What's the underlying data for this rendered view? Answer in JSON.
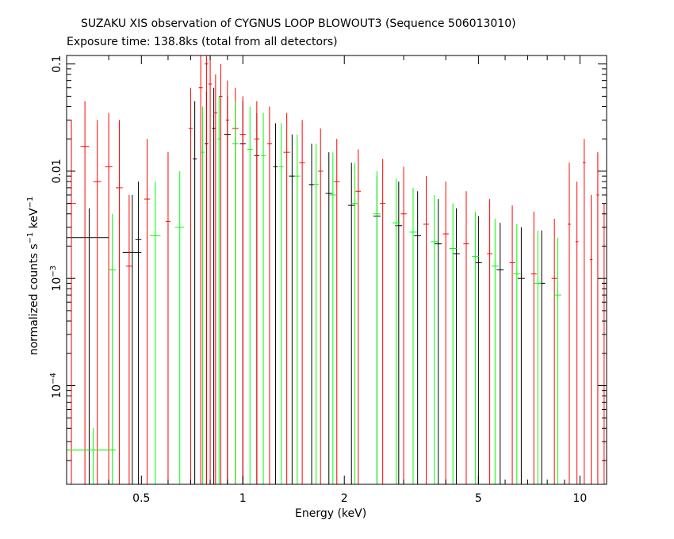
{
  "chart_data": {
    "type": "scatter",
    "title": "SUZAKU XIS observation of CYGNUS LOOP BLOWOUT3 (Sequence 506013010)",
    "subtitle": "Exposure time: 138.8ks (total from all detectors)",
    "xlabel": "Energy (keV)",
    "ylabel": "normalized counts s^-1 keV^-1",
    "xscale": "log",
    "yscale": "log",
    "xlim": [
      0.3,
      12
    ],
    "ylim": [
      1.2e-05,
      0.12
    ],
    "xticks": [
      {
        "value": 0.5,
        "label": "0.5"
      },
      {
        "value": 1,
        "label": "1"
      },
      {
        "value": 2,
        "label": "2"
      },
      {
        "value": 5,
        "label": "5"
      },
      {
        "value": 10,
        "label": "10"
      }
    ],
    "yticks": [
      {
        "value": 0.1,
        "label": "0.1"
      },
      {
        "value": 0.01,
        "label": "0.01"
      },
      {
        "value": 0.001,
        "label": "10",
        "exp": "-3"
      },
      {
        "value": 0.0001,
        "label": "10",
        "exp": "-4"
      }
    ],
    "series": [
      {
        "color": "#000000",
        "x": [
          0.35,
          0.47,
          0.49,
          0.72,
          0.78,
          0.82,
          0.9,
          1.0,
          1.1,
          1.25,
          1.4,
          1.6,
          1.8,
          2.1,
          2.5,
          2.9,
          3.3,
          3.8,
          4.3,
          5.0,
          5.8,
          6.7,
          7.7
        ],
        "y": [
          0.0024,
          0.00175,
          0.0023,
          0.013,
          0.018,
          0.025,
          0.022,
          0.018,
          0.014,
          0.011,
          0.009,
          0.0075,
          0.0062,
          0.0048,
          0.0038,
          0.0031,
          0.0025,
          0.0021,
          0.0017,
          0.0014,
          0.0012,
          0.001,
          0.0009
        ],
        "xerr": [
          0.05,
          0.03,
          0.01,
          0.01,
          0.01,
          0.01,
          0.02,
          0.02,
          0.02,
          0.02,
          0.03,
          0.03,
          0.04,
          0.05,
          0.06,
          0.07,
          0.08,
          0.09,
          0.1,
          0.12,
          0.14,
          0.16,
          0.18
        ],
        "ylo": [
          1.2e-05,
          1.2e-05,
          1.2e-05,
          1.2e-05,
          1.2e-05,
          1.2e-05,
          1.2e-05,
          1.2e-05,
          1.2e-05,
          1.2e-05,
          1.2e-05,
          1.2e-05,
          1.2e-05,
          1.2e-05,
          1.2e-05,
          1.2e-05,
          1.2e-05,
          1.2e-05,
          1.2e-05,
          1.2e-05,
          1.2e-05,
          1.2e-05,
          1.2e-05
        ],
        "yhi": [
          0.0045,
          0.006,
          0.008,
          0.045,
          0.055,
          0.06,
          0.05,
          0.045,
          0.035,
          0.028,
          0.022,
          0.018,
          0.015,
          0.012,
          0.009,
          0.008,
          0.0065,
          0.0055,
          0.0045,
          0.0038,
          0.0033,
          0.003,
          0.0028
        ]
      },
      {
        "color": "#ff0000",
        "x": [
          0.31,
          0.34,
          0.37,
          0.4,
          0.43,
          0.46,
          0.52,
          0.6,
          0.7,
          0.75,
          0.78,
          0.8,
          0.83,
          0.86,
          0.9,
          0.95,
          1.0,
          1.1,
          1.2,
          1.35,
          1.5,
          1.7,
          1.9,
          2.2,
          2.6,
          3.0,
          3.5,
          4.0,
          4.6,
          5.4,
          6.3,
          7.3,
          8.4,
          9.3,
          9.8,
          10.3,
          10.8,
          11.3,
          11.8
        ],
        "y": [
          0.005,
          0.017,
          0.008,
          0.011,
          0.007,
          0.0013,
          0.0055,
          0.0034,
          0.025,
          0.06,
          0.1,
          0.065,
          0.035,
          0.05,
          0.03,
          0.025,
          0.022,
          0.02,
          0.018,
          0.015,
          0.012,
          0.01,
          0.008,
          0.0065,
          0.005,
          0.004,
          0.0032,
          0.0026,
          0.0021,
          0.0017,
          0.0014,
          0.0011,
          0.001,
          0.0032,
          0.0022,
          0.012,
          0.0015,
          0.006,
          0.0009
        ],
        "xerr": [
          0.01,
          0.01,
          0.01,
          0.01,
          0.01,
          0.01,
          0.01,
          0.01,
          0.01,
          0.01,
          0.01,
          0.01,
          0.01,
          0.01,
          0.01,
          0.02,
          0.02,
          0.02,
          0.02,
          0.03,
          0.03,
          0.03,
          0.04,
          0.04,
          0.05,
          0.06,
          0.07,
          0.08,
          0.09,
          0.1,
          0.12,
          0.14,
          0.16,
          0.1,
          0.1,
          0.1,
          0.1,
          0.1,
          0.1
        ],
        "ylo": [
          1.2e-05,
          1.2e-05,
          1.2e-05,
          1.2e-05,
          1.2e-05,
          1.2e-05,
          1.2e-05,
          1.2e-05,
          1.2e-05,
          1.2e-05,
          1.2e-05,
          1.2e-05,
          1.2e-05,
          1.2e-05,
          1.2e-05,
          1.2e-05,
          1.2e-05,
          1.2e-05,
          1.2e-05,
          1.2e-05,
          1.2e-05,
          1.2e-05,
          1.2e-05,
          1.2e-05,
          1.2e-05,
          1.2e-05,
          1.2e-05,
          1.2e-05,
          1.2e-05,
          1.2e-05,
          1.2e-05,
          1.2e-05,
          1.2e-05,
          1.2e-05,
          1.2e-05,
          1.2e-05,
          1.2e-05,
          1.2e-05,
          1.2e-05
        ],
        "yhi": [
          0.03,
          0.045,
          0.03,
          0.035,
          0.03,
          0.006,
          0.02,
          0.015,
          0.06,
          0.12,
          0.12,
          0.12,
          0.08,
          0.1,
          0.07,
          0.06,
          0.05,
          0.045,
          0.04,
          0.035,
          0.03,
          0.025,
          0.02,
          0.016,
          0.013,
          0.011,
          0.009,
          0.008,
          0.0065,
          0.0055,
          0.0048,
          0.0042,
          0.0036,
          0.012,
          0.008,
          0.02,
          0.006,
          0.015,
          0.005
        ]
      },
      {
        "color": "#00ff00",
        "x": [
          0.36,
          0.41,
          0.55,
          0.65,
          0.76,
          0.85,
          0.95,
          1.05,
          1.15,
          1.3,
          1.45,
          1.65,
          1.85,
          2.15,
          2.5,
          2.85,
          3.2,
          3.7,
          4.2,
          4.9,
          5.6,
          6.5,
          7.5,
          8.6
        ],
        "y": [
          2.5e-05,
          0.0012,
          0.0025,
          0.003,
          0.015,
          0.02,
          0.018,
          0.016,
          0.014,
          0.011,
          0.009,
          0.0075,
          0.006,
          0.005,
          0.004,
          0.0033,
          0.0027,
          0.0022,
          0.0019,
          0.0016,
          0.0013,
          0.0011,
          0.0009,
          0.0007
        ],
        "xerr": [
          0.06,
          0.01,
          0.02,
          0.02,
          0.01,
          0.01,
          0.02,
          0.02,
          0.02,
          0.02,
          0.03,
          0.03,
          0.04,
          0.05,
          0.06,
          0.07,
          0.08,
          0.09,
          0.1,
          0.12,
          0.14,
          0.16,
          0.18,
          0.2
        ],
        "ylo": [
          1.2e-05,
          1.2e-05,
          1.2e-05,
          1.2e-05,
          1.2e-05,
          1.2e-05,
          1.2e-05,
          1.2e-05,
          1.2e-05,
          1.2e-05,
          1.2e-05,
          1.2e-05,
          1.2e-05,
          1.2e-05,
          1.2e-05,
          1.2e-05,
          1.2e-05,
          1.2e-05,
          1.2e-05,
          1.2e-05,
          1.2e-05,
          1.2e-05,
          1.2e-05,
          1.2e-05
        ],
        "yhi": [
          4e-05,
          0.004,
          0.008,
          0.01,
          0.04,
          0.05,
          0.045,
          0.04,
          0.035,
          0.028,
          0.022,
          0.018,
          0.015,
          0.012,
          0.01,
          0.0085,
          0.007,
          0.006,
          0.005,
          0.0042,
          0.0036,
          0.0032,
          0.0028,
          0.0024
        ]
      }
    ]
  }
}
